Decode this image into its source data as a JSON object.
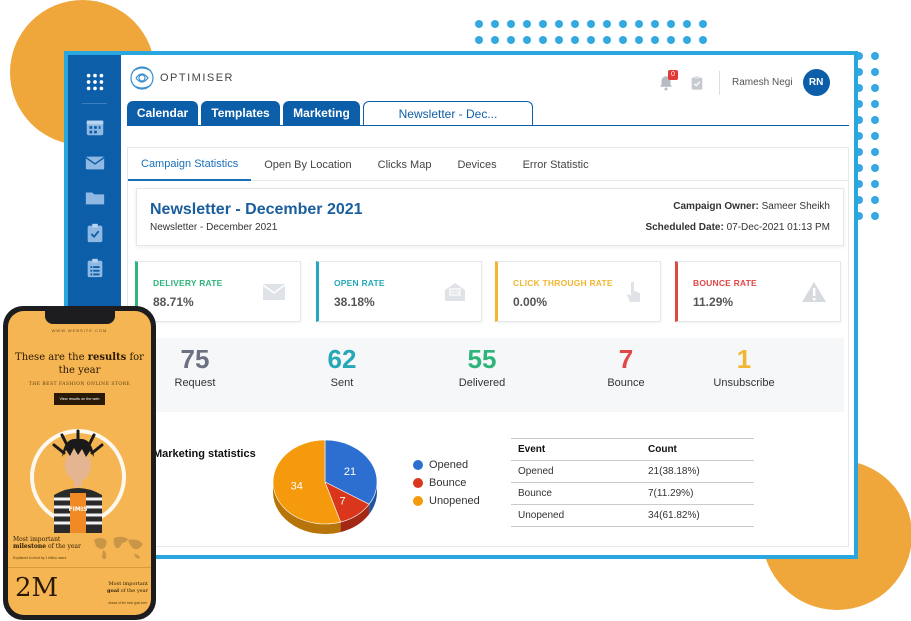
{
  "brand": {
    "name": "OPTIMISER"
  },
  "header": {
    "notification_count": "0",
    "user_name": "Ramesh Negi",
    "user_initials": "RN"
  },
  "tabs": [
    {
      "label": "Calendar"
    },
    {
      "label": "Templates"
    },
    {
      "label": "Marketing"
    },
    {
      "label": "Newsletter - Dec..."
    }
  ],
  "subtabs": [
    {
      "label": "Campaign Statistics"
    },
    {
      "label": "Open By Location"
    },
    {
      "label": "Clicks Map"
    },
    {
      "label": "Devices"
    },
    {
      "label": "Error Statistic"
    }
  ],
  "campaign": {
    "title": "Newsletter - December 2021",
    "subtitle": "Newsletter - December 2021",
    "owner_label": "Campaign Owner:",
    "owner": "Sameer Sheikh",
    "scheduled_label": "Scheduled Date:",
    "scheduled": "07-Dec-2021 01:13 PM"
  },
  "rates": [
    {
      "label": "DELIVERY RATE",
      "value": "88.71%",
      "color": "#2fb47c",
      "icon": "envelope-icon"
    },
    {
      "label": "OPEN RATE",
      "value": "38.18%",
      "color": "#26a8b8",
      "icon": "open-mail-icon"
    },
    {
      "label": "CLICK THROUGH RATE",
      "value": "0.00%",
      "color": "#f2b632",
      "icon": "pointer-hand-icon"
    },
    {
      "label": "BOUNCE RATE",
      "value": "11.29%",
      "color": "#e04848",
      "icon": "warning-icon"
    }
  ],
  "stats": [
    {
      "value": "75",
      "label": "Request",
      "color": "#6b7180"
    },
    {
      "value": "62",
      "label": "Sent",
      "color": "#26a8b8"
    },
    {
      "value": "55",
      "label": "Delivered",
      "color": "#2fb47c"
    },
    {
      "value": "7",
      "label": "Bounce",
      "color": "#e04848"
    },
    {
      "value": "1",
      "label": "Unsubscribe",
      "color": "#f2b632"
    }
  ],
  "marketing": {
    "title": "Marketing statistics"
  },
  "chart_data": {
    "type": "pie",
    "categories": [
      "Opened",
      "Bounce",
      "Unopened"
    ],
    "values": [
      21,
      7,
      34
    ],
    "colors": [
      "#2d6fd1",
      "#d9361b",
      "#f49a0c"
    ],
    "legend": "right"
  },
  "table": {
    "headers": [
      "Event",
      "Count"
    ],
    "rows": [
      [
        "Opened",
        "21(38.18%)"
      ],
      [
        "Bounce",
        "7(11.29%)"
      ],
      [
        "Unopened",
        "34(61.82%)"
      ]
    ]
  },
  "phone": {
    "url": "WWW.WEBSITE.COM",
    "headline_a": "These are the ",
    "headline_b": "results",
    "headline_c": " for the year",
    "tagline": "THE BEST FASHION ONLINE STORE",
    "button": "View results on the web",
    "shirt": "FIMIS",
    "block1_a": "Most important",
    "block1_b": "milestone",
    "block1_c": " of the year",
    "block1_small": "Explained in short by 1 billion users",
    "big_number": "2M",
    "block2_a": "Most important",
    "block2_b": "goal",
    "block2_c": " of the year",
    "block2_small": "ahead of the best goal ever"
  }
}
